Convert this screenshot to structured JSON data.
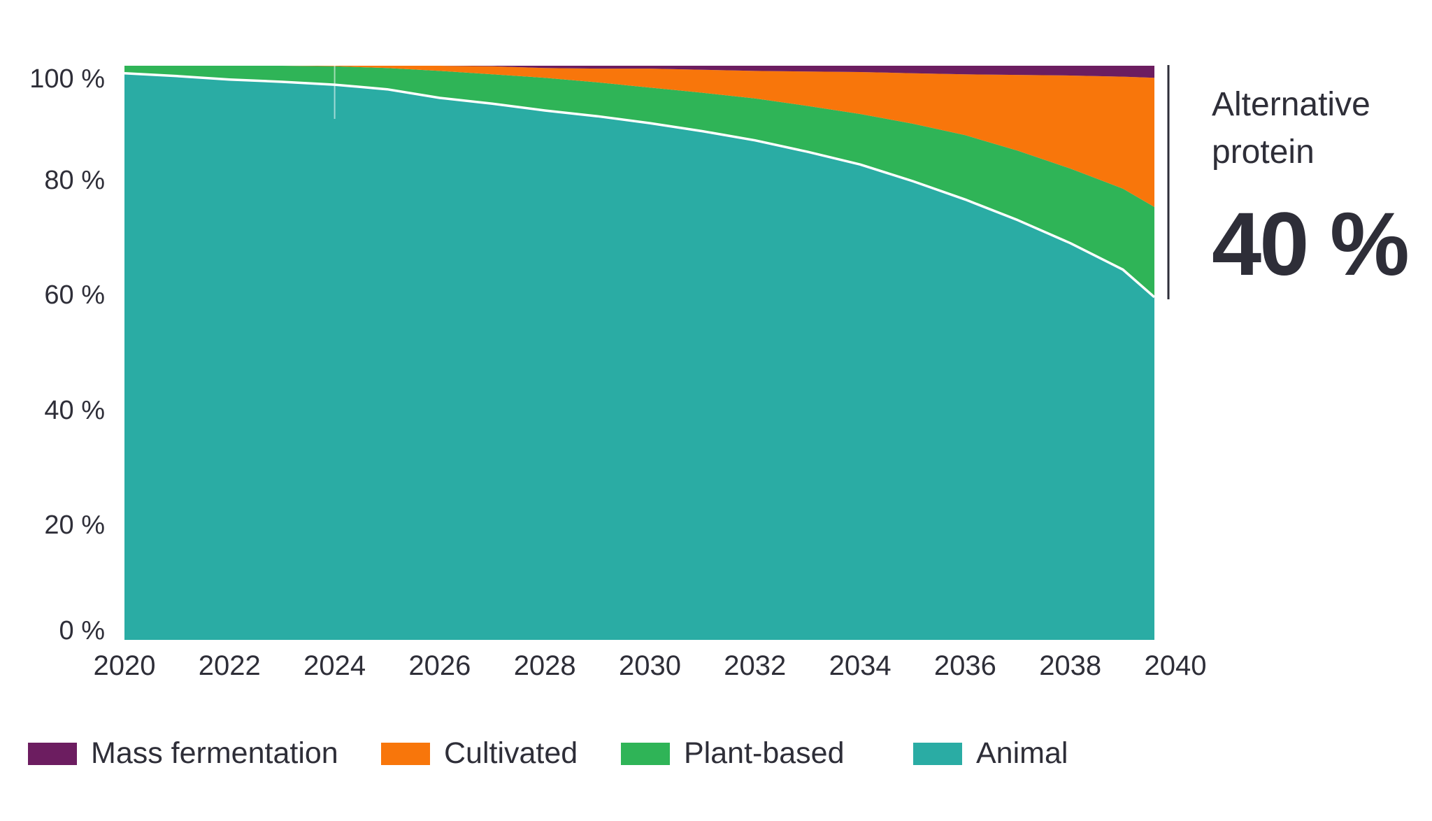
{
  "chart_data": {
    "type": "area",
    "stacked": true,
    "unit": "%",
    "x": [
      2020,
      2021,
      2022,
      2023,
      2024,
      2025,
      2026,
      2027,
      2028,
      2029,
      2030,
      2031,
      2032,
      2033,
      2034,
      2035,
      2036,
      2037,
      2038,
      2039,
      2040
    ],
    "series": [
      {
        "name": "Animal",
        "color": "#2AACA4",
        "values": [
          98.7,
          98.2,
          97.6,
          97.2,
          96.7,
          95.9,
          94.4,
          93.4,
          92.2,
          91.2,
          90.0,
          88.6,
          87.0,
          85.0,
          82.8,
          79.9,
          76.7,
          73.1,
          69.1,
          64.5,
          59.7
        ]
      },
      {
        "name": "Plant-based",
        "color": "#2FB457",
        "values": [
          1.3,
          1.8,
          2.4,
          2.8,
          3.2,
          3.7,
          4.7,
          5.1,
          5.7,
          5.9,
          6.2,
          6.7,
          7.3,
          8.0,
          8.8,
          10.0,
          11.2,
          12.1,
          13.0,
          14.1,
          15.7
        ]
      },
      {
        "name": "Cultivated",
        "color": "#F8760B",
        "values": [
          0,
          0,
          0,
          0,
          0.1,
          0.4,
          0.9,
          1.4,
          1.7,
          2.4,
          3.3,
          4.0,
          4.8,
          6.0,
          7.3,
          8.8,
          10.6,
          13.2,
          16.2,
          19.5,
          22.5
        ]
      },
      {
        "name": "Mass fermentation",
        "color": "#6C1D60",
        "values": [
          0,
          0,
          0,
          0,
          0,
          0,
          0,
          0.1,
          0.4,
          0.5,
          0.5,
          0.7,
          0.9,
          1.0,
          1.1,
          1.3,
          1.5,
          1.6,
          1.7,
          1.9,
          2.1
        ]
      }
    ],
    "ylim": [
      0,
      100
    ],
    "y_tick_labels": [
      "0 %",
      "20 %",
      "40 %",
      "60 %",
      "80 %",
      "100 %"
    ],
    "y_tick_values": [
      0,
      20,
      40,
      60,
      80,
      100
    ],
    "x_tick_labels": [
      "2020",
      "2022",
      "2024",
      "2026",
      "2028",
      "2030",
      "2032",
      "2034",
      "2036",
      "2038",
      "2040"
    ],
    "x_tick_values": [
      2020,
      2022,
      2024,
      2026,
      2028,
      2030,
      2032,
      2034,
      2036,
      2038,
      2040
    ],
    "grid": false,
    "legend_position": "bottom",
    "boundary_stroke_color": "#ffffff",
    "forecast_divider_year": 2024
  },
  "legend": {
    "items": [
      {
        "label": "Mass fermentation",
        "color": "#6C1D60"
      },
      {
        "label": "Cultivated",
        "color": "#F8760B"
      },
      {
        "label": "Plant-based",
        "color": "#2FB457"
      },
      {
        "label": "Animal",
        "color": "#2AACA4"
      }
    ]
  },
  "annotation": {
    "line1": "Alternative",
    "line2": "protein",
    "value": "40 %",
    "ink_color": "#2E2E38"
  }
}
